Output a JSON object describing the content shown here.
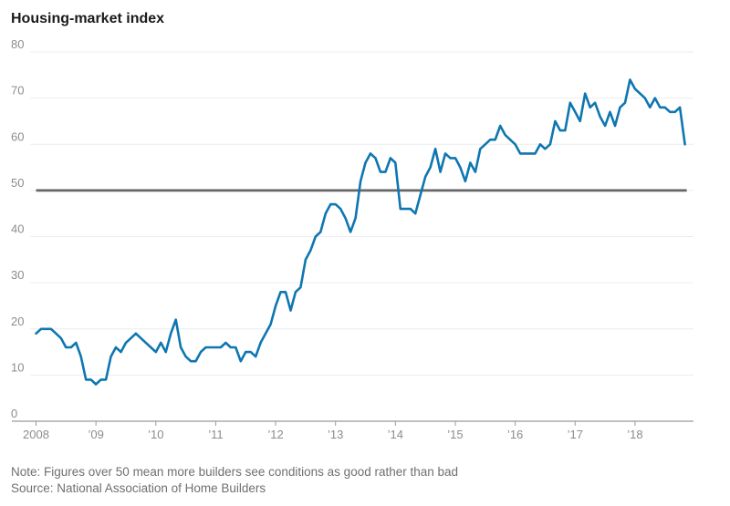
{
  "page": {
    "title": "Housing-market index"
  },
  "footer": {
    "note": "Note: Figures over 50 mean more builders see conditions as good rather than bad",
    "source": "Source: National Association of Home Builders"
  },
  "chart_data": {
    "type": "line",
    "title": "Housing-market index",
    "x_unit": "month",
    "x_start_month": "2008-01",
    "x_end_month": "2018-11",
    "x_tick_labels": [
      "2008",
      "’09",
      "’10",
      "’11",
      "’12",
      "’13",
      "’14",
      "’15",
      "’16",
      "’17",
      "’18"
    ],
    "y_ticks": [
      0,
      10,
      20,
      30,
      40,
      50,
      60,
      70,
      80
    ],
    "ylim": [
      0,
      80
    ],
    "grid": "horizontal",
    "legend": "none",
    "reference_line": {
      "value": 50
    },
    "series": [
      {
        "name": "Housing-market index (NAHB)",
        "values": [
          19,
          20,
          20,
          20,
          19,
          18,
          16,
          16,
          17,
          14,
          9,
          9,
          8,
          9,
          9,
          14,
          16,
          15,
          17,
          18,
          19,
          18,
          17,
          16,
          15,
          17,
          15,
          19,
          22,
          16,
          14,
          13,
          13,
          15,
          16,
          16,
          16,
          16,
          17,
          16,
          16,
          13,
          15,
          15,
          14,
          17,
          19,
          21,
          25,
          28,
          28,
          24,
          28,
          29,
          35,
          37,
          40,
          41,
          45,
          47,
          47,
          46,
          44,
          41,
          44,
          52,
          56,
          58,
          57,
          54,
          54,
          57,
          56,
          46,
          46,
          46,
          45,
          49,
          53,
          55,
          59,
          54,
          58,
          57,
          57,
          55,
          52,
          56,
          54,
          59,
          60,
          61,
          61,
          64,
          62,
          61,
          60,
          58,
          58,
          58,
          58,
          60,
          59,
          60,
          65,
          63,
          63,
          69,
          67,
          65,
          71,
          68,
          69,
          66,
          64,
          67,
          64,
          68,
          69,
          74,
          72,
          71,
          70,
          68,
          70,
          68,
          68,
          67,
          67,
          68,
          60
        ]
      }
    ],
    "colors": {
      "line": "#0e76b1",
      "reference_line": "#666666",
      "gridline": "#e9edf0",
      "axis": "#9b9b9b",
      "tick_label": "#8c8c8c",
      "title": "#1a1a1a",
      "note": "#6f6f6f"
    }
  }
}
